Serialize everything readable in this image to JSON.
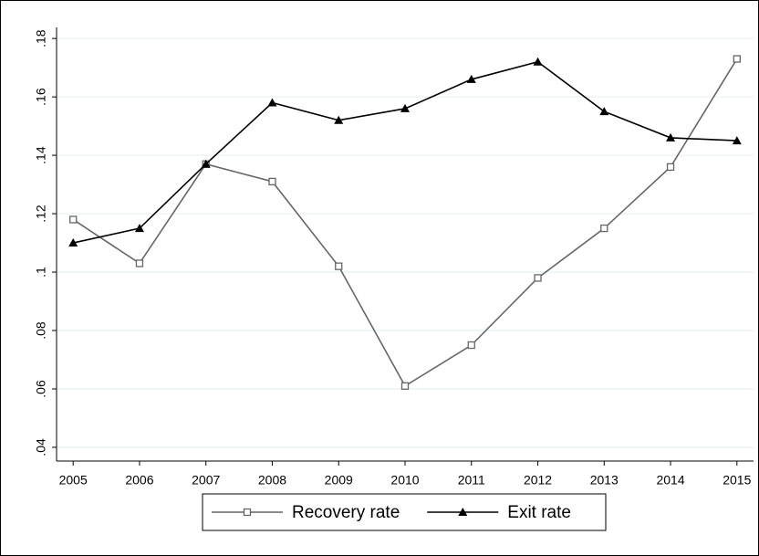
{
  "chart_data": {
    "type": "line",
    "x": [
      2005,
      2006,
      2007,
      2008,
      2009,
      2010,
      2011,
      2012,
      2013,
      2014,
      2015
    ],
    "series": [
      {
        "name": "Recovery rate",
        "color": "#666666",
        "marker": "square",
        "values": [
          0.118,
          0.103,
          0.137,
          0.131,
          0.102,
          0.061,
          0.075,
          0.098,
          0.115,
          0.136,
          0.173
        ]
      },
      {
        "name": "Exit rate",
        "color": "#000000",
        "marker": "triangle",
        "values": [
          0.11,
          0.115,
          0.137,
          0.158,
          0.152,
          0.156,
          0.166,
          0.172,
          0.155,
          0.146,
          0.145
        ]
      }
    ],
    "xlim": [
      2004.75,
      2015.25
    ],
    "xticks": [
      2005,
      2006,
      2007,
      2008,
      2009,
      2010,
      2011,
      2012,
      2013,
      2014,
      2015
    ],
    "ylim": [
      0.0353,
      0.1838
    ],
    "yticks": [
      {
        "value": 0.04,
        "label": ".04"
      },
      {
        "value": 0.06,
        "label": ".06"
      },
      {
        "value": 0.08,
        "label": ".08"
      },
      {
        "value": 0.1,
        "label": ".1"
      },
      {
        "value": 0.12,
        "label": ".12"
      },
      {
        "value": 0.14,
        "label": ".14"
      },
      {
        "value": 0.16,
        "label": ".16"
      },
      {
        "value": 0.18,
        "label": ".18"
      }
    ],
    "grid": true,
    "legend": "bottom"
  }
}
